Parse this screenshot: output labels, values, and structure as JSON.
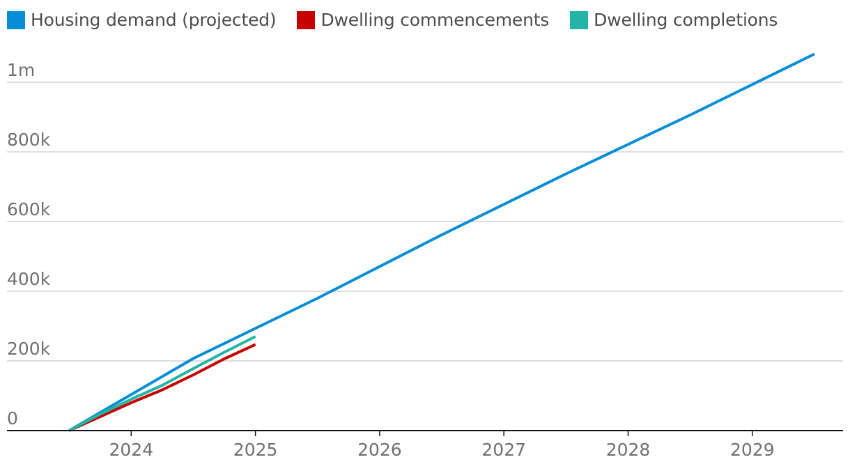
{
  "chart_data": {
    "type": "line",
    "title": "",
    "xlabel": "",
    "ylabel": "",
    "x_ticks": [
      2024,
      2025,
      2026,
      2027,
      2028,
      2029
    ],
    "y_ticks": [
      {
        "value": 0,
        "label": "0"
      },
      {
        "value": 200000,
        "label": "200k"
      },
      {
        "value": 400000,
        "label": "400k"
      },
      {
        "value": 600000,
        "label": "600k"
      },
      {
        "value": 800000,
        "label": "800k"
      },
      {
        "value": 1000000,
        "label": "1m"
      }
    ],
    "xlim": [
      2023.0,
      2029.73
    ],
    "ylim": [
      0,
      1000000
    ],
    "grid": true,
    "legend_position": "top-left",
    "series": [
      {
        "name": "Housing demand (projected)",
        "color": "#058ed6",
        "points": [
          {
            "x": 2023.5,
            "y": 0
          },
          {
            "x": 2024.5,
            "y": 207000
          },
          {
            "x": 2025.5,
            "y": 380000
          },
          {
            "x": 2026.5,
            "y": 562000
          },
          {
            "x": 2027.5,
            "y": 737000
          },
          {
            "x": 2028.5,
            "y": 906000
          },
          {
            "x": 2029.5,
            "y": 1081000
          }
        ]
      },
      {
        "name": "Dwelling commencements",
        "color": "#c70000",
        "points": [
          {
            "x": 2023.5,
            "y": 0
          },
          {
            "x": 2023.75,
            "y": 40000
          },
          {
            "x": 2024.0,
            "y": 80000
          },
          {
            "x": 2024.25,
            "y": 117000
          },
          {
            "x": 2024.5,
            "y": 160000
          },
          {
            "x": 2024.75,
            "y": 206000
          },
          {
            "x": 2025.0,
            "y": 247000
          }
        ]
      },
      {
        "name": "Dwelling completions",
        "color": "#22b5a5",
        "points": [
          {
            "x": 2023.5,
            "y": 0
          },
          {
            "x": 2023.75,
            "y": 47000
          },
          {
            "x": 2024.0,
            "y": 90000
          },
          {
            "x": 2024.25,
            "y": 130000
          },
          {
            "x": 2024.5,
            "y": 178000
          },
          {
            "x": 2024.75,
            "y": 225000
          },
          {
            "x": 2025.0,
            "y": 270000
          }
        ]
      }
    ]
  }
}
